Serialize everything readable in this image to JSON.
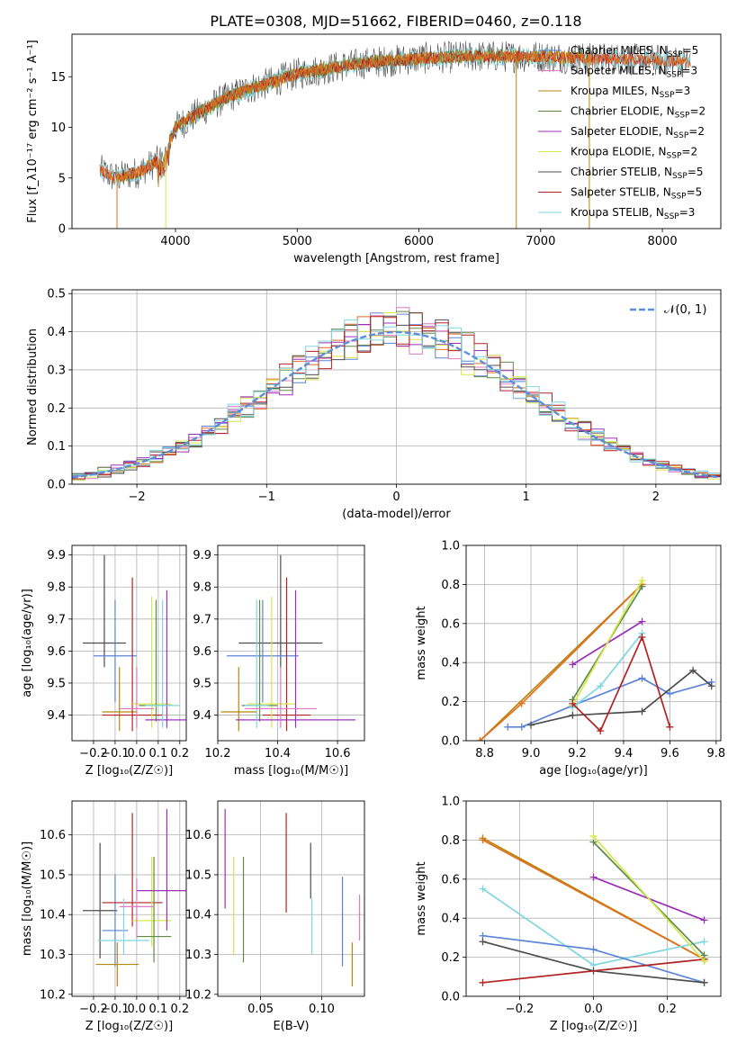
{
  "title": "PLATE=0308, MJD=51662, FIBERID=0460, z=0.118",
  "colors": {
    "Chabrier MILES": "#5b83d9",
    "Salpeter MILES": "#e377c2",
    "Kroupa MILES": "#b8860b",
    "Chabrier ELODIE": "#5e8a4a",
    "Salpeter ELODIE": "#9b30b8",
    "Kroupa ELODIE": "#d4e84a",
    "Chabrier STELIB": "#4d4d4d",
    "Salpeter STELIB": "#b22222",
    "Kroupa STELIB": "#7fd6e0",
    "orange": "#e07020",
    "gaussian": "#5b8fd9"
  },
  "chart_data": [
    {
      "type": "line",
      "id": "spectrum",
      "xlabel": "wavelength [Angstrom, rest frame]",
      "ylabel": "Flux [f_λ10⁻¹⁷ erg cm⁻² s⁻¹ A⁻¹]",
      "xlim": [
        3150,
        8480
      ],
      "ylim": [
        0,
        19.2
      ],
      "xticks": [
        4000,
        5000,
        6000,
        7000,
        8000
      ],
      "yticks": [
        0,
        5,
        10,
        15
      ],
      "legend": "right",
      "legend_entries": [
        {
          "label": "Chabrier MILES, N_SSP=5",
          "color": "#5b83d9"
        },
        {
          "label": "Salpeter MILES, N_SSP=3",
          "color": "#e377c2"
        },
        {
          "label": "Kroupa MILES, N_SSP=3",
          "color": "#b8860b"
        },
        {
          "label": "Chabrier ELODIE, N_SSP=2",
          "color": "#5e8a4a"
        },
        {
          "label": "Salpeter ELODIE, N_SSP=2",
          "color": "#9b30b8"
        },
        {
          "label": "Kroupa ELODIE, N_SSP=2",
          "color": "#d4e84a"
        },
        {
          "label": "Chabrier STELIB, N_SSP=5",
          "color": "#4d4d4d"
        },
        {
          "label": "Salpeter STELIB, N_SSP=5",
          "color": "#b22222"
        },
        {
          "label": "Kroupa STELIB, N_SSP=3",
          "color": "#7fd6e0"
        }
      ],
      "continuum_x": [
        3380,
        3500,
        3700,
        3900,
        4000,
        4200,
        4400,
        4600,
        4800,
        5000,
        5200,
        5400,
        5600,
        5800,
        6000,
        6200,
        6400,
        6600,
        6800,
        7000,
        7200,
        7400,
        7600,
        7800,
        8000,
        8200,
        8250
      ],
      "continuum_y": [
        5.8,
        5.0,
        5.6,
        7.0,
        10.0,
        11.5,
        12.8,
        13.8,
        14.5,
        15.3,
        15.7,
        16.1,
        16.4,
        16.6,
        16.8,
        16.9,
        17.0,
        17.0,
        17.0,
        17.0,
        16.9,
        16.8,
        16.8,
        16.7,
        16.6,
        16.5,
        16.5
      ]
    },
    {
      "type": "line",
      "id": "residual_histogram",
      "xlabel": "(data-model)/error",
      "ylabel": "Normed distribution",
      "xlim": [
        -2.5,
        2.5
      ],
      "ylim": [
        0,
        0.51
      ],
      "xticks": [
        -2,
        -1,
        0,
        1,
        2
      ],
      "yticks": [
        0.0,
        0.1,
        0.2,
        0.3,
        0.4,
        0.5
      ],
      "grid": true,
      "legend": "top-right",
      "legend_label": "𝒩(0, 1)",
      "bin_width": 0.1
    },
    {
      "type": "scatter",
      "id": "age_vs_Z",
      "xlabel": "Z [log₁₀(Z/Z☉)]",
      "ylabel": "age  [log₁₀(age/yr)]",
      "xlim": [
        -0.3,
        0.23
      ],
      "ylim": [
        9.32,
        9.93
      ],
      "xticks": [
        -0.2,
        -0.1,
        0.0,
        0.1,
        0.2
      ],
      "yticks": [
        9.4,
        9.5,
        9.6,
        9.7,
        9.8,
        9.9
      ],
      "grid": true,
      "errorbars": [
        {
          "series": "Chabrier STELIB",
          "x": -0.15,
          "xerr": 0.1,
          "y": 9.625,
          "yerr": 0.075,
          "y_lo": 9.55,
          "y_hi": 9.9
        },
        {
          "series": "Chabrier MILES",
          "x": -0.1,
          "xerr": 0.1,
          "y": 9.585,
          "yerr": 0.1,
          "y_lo": 9.44,
          "y_hi": 9.76
        },
        {
          "series": "Kroupa MILES",
          "x": -0.08,
          "xerr": 0.08,
          "y": 9.41,
          "yerr": 0.05,
          "y_lo": 9.35,
          "y_hi": 9.55
        },
        {
          "series": "Salpeter STELIB",
          "x": -0.02,
          "xerr": 0.14,
          "y": 9.4,
          "yerr": 0.05,
          "y_lo": 9.35,
          "y_hi": 9.83
        },
        {
          "series": "Kroupa ELODIE",
          "x": 0.07,
          "xerr": 0.09,
          "y": 9.435,
          "yerr": 0.05,
          "y_lo": 9.36,
          "y_hi": 9.77
        },
        {
          "series": "Chabrier ELODIE",
          "x": 0.09,
          "xerr": 0.08,
          "y": 9.43,
          "yerr": 0.05,
          "y_lo": 9.38,
          "y_hi": 9.76
        },
        {
          "series": "Salpeter ELODIE",
          "x": 0.14,
          "xerr": 0.1,
          "y": 9.385,
          "yerr": 0.05,
          "y_lo": 9.36,
          "y_hi": 9.79
        },
        {
          "series": "Kroupa STELIB",
          "x": 0.12,
          "xerr": 0.08,
          "y": 9.43,
          "yerr": 0.05,
          "y_lo": 9.36,
          "y_hi": 9.76
        },
        {
          "series": "Salpeter MILES",
          "x": 0.0,
          "xerr": 0.08,
          "y": 9.42,
          "yerr": 0.05,
          "y_lo": 9.36,
          "y_hi": 9.55
        }
      ]
    },
    {
      "type": "scatter",
      "id": "age_vs_mass",
      "xlabel": "mass [log₁₀(M/M☉)]",
      "ylabel": "",
      "xlim": [
        10.2,
        10.69
      ],
      "ylim": [
        9.32,
        9.93
      ],
      "xticks": [
        10.2,
        10.4,
        10.6
      ],
      "yticks": [
        9.4,
        9.5,
        9.6,
        9.7,
        9.8,
        9.9
      ],
      "grid": true,
      "errorbars": [
        {
          "series": "Chabrier STELIB",
          "x": 10.41,
          "xerr": 0.14,
          "y": 9.625,
          "y_lo": 9.55,
          "y_hi": 9.9
        },
        {
          "series": "Chabrier MILES",
          "x": 10.35,
          "xerr": 0.12,
          "y": 9.585,
          "y_lo": 9.44,
          "y_hi": 9.76
        },
        {
          "series": "Kroupa MILES",
          "x": 10.27,
          "xerr": 0.06,
          "y": 9.41,
          "y_lo": 9.35,
          "y_hi": 9.55
        },
        {
          "series": "Salpeter STELIB",
          "x": 10.43,
          "xerr": 0.08,
          "y": 9.4,
          "y_lo": 9.35,
          "y_hi": 9.83
        },
        {
          "series": "Kroupa ELODIE",
          "x": 10.38,
          "xerr": 0.08,
          "y": 9.435,
          "y_lo": 9.36,
          "y_hi": 9.77
        },
        {
          "series": "Chabrier ELODIE",
          "x": 10.34,
          "xerr": 0.06,
          "y": 9.43,
          "y_lo": 9.38,
          "y_hi": 9.76
        },
        {
          "series": "Salpeter ELODIE",
          "x": 10.46,
          "xerr": 0.2,
          "y": 9.385,
          "y_lo": 9.36,
          "y_hi": 9.79
        },
        {
          "series": "Kroupa STELIB",
          "x": 10.33,
          "xerr": 0.04,
          "y": 9.43,
          "y_lo": 9.36,
          "y_hi": 9.76
        },
        {
          "series": "Salpeter MILES",
          "x": 10.41,
          "xerr": 0.12,
          "y": 9.42,
          "y_lo": 9.36,
          "y_hi": 9.55
        }
      ]
    },
    {
      "type": "line",
      "id": "weight_vs_age",
      "xlabel": "age  [log₁₀(age/yr)]",
      "ylabel": "mass weight",
      "xlim": [
        8.72,
        9.82
      ],
      "ylim": [
        0,
        1.0
      ],
      "xticks": [
        8.8,
        9.0,
        9.2,
        9.4,
        9.6,
        9.8
      ],
      "yticks": [
        0.0,
        0.2,
        0.4,
        0.6,
        0.8,
        1.0
      ],
      "grid": true,
      "series": [
        {
          "name": "Chabrier MILES",
          "x": [
            8.9,
            8.96,
            9.18,
            9.48,
            9.6,
            9.78
          ],
          "y": [
            0.07,
            0.07,
            0.18,
            0.32,
            0.24,
            0.3
          ]
        },
        {
          "name": "Kroupa MILES",
          "x": [
            8.78,
            9.48
          ],
          "y": [
            0.0,
            0.8
          ]
        },
        {
          "name": "orange",
          "x": [
            8.78,
            8.96,
            9.48
          ],
          "y": [
            0.0,
            0.19,
            0.8
          ]
        },
        {
          "name": "Salpeter ELODIE",
          "x": [
            9.18,
            9.48
          ],
          "y": [
            0.39,
            0.61
          ]
        },
        {
          "name": "Chabrier ELODIE",
          "x": [
            9.18,
            9.48
          ],
          "y": [
            0.21,
            0.79
          ]
        },
        {
          "name": "Kroupa ELODIE",
          "x": [
            9.18,
            9.48
          ],
          "y": [
            0.18,
            0.82
          ]
        },
        {
          "name": "Kroupa STELIB",
          "x": [
            9.18,
            9.3,
            9.48
          ],
          "y": [
            0.17,
            0.28,
            0.55
          ]
        },
        {
          "name": "Chabrier STELIB",
          "x": [
            9.0,
            9.18,
            9.48,
            9.7,
            9.78
          ],
          "y": [
            0.08,
            0.13,
            0.15,
            0.36,
            0.28
          ]
        },
        {
          "name": "Salpeter STELIB",
          "x": [
            9.18,
            9.3,
            9.48,
            9.6
          ],
          "y": [
            0.19,
            0.05,
            0.53,
            0.07
          ]
        }
      ]
    },
    {
      "type": "scatter",
      "id": "mass_vs_Z",
      "xlabel": "Z [log₁₀(Z/Z☉)]",
      "ylabel": "mass [log₁₀(M/M☉)]",
      "xlim": [
        -0.3,
        0.23
      ],
      "ylim": [
        10.195,
        10.685
      ],
      "xticks": [
        -0.2,
        -0.1,
        0.0,
        0.1,
        0.2
      ],
      "yticks": [
        10.2,
        10.3,
        10.4,
        10.5,
        10.6
      ],
      "grid": true,
      "errorbars": [
        {
          "series": "Chabrier STELIB",
          "x": -0.17,
          "xerr": 0.08,
          "y": 10.41,
          "y_lo": 10.29,
          "y_hi": 10.58
        },
        {
          "series": "Chabrier MILES",
          "x": -0.1,
          "xerr": 0.06,
          "y": 10.36,
          "y_lo": 10.27,
          "y_hi": 10.5
        },
        {
          "series": "Kroupa MILES",
          "x": -0.09,
          "xerr": 0.1,
          "y": 10.275,
          "y_lo": 10.22,
          "y_hi": 10.33
        },
        {
          "series": "Salpeter STELIB",
          "x": -0.02,
          "xerr": 0.14,
          "y": 10.43,
          "y_lo": 10.37,
          "y_hi": 10.655
        },
        {
          "series": "Kroupa ELODIE",
          "x": 0.07,
          "xerr": 0.09,
          "y": 10.385,
          "y_lo": 10.32,
          "y_hi": 10.545
        },
        {
          "series": "Chabrier ELODIE",
          "x": 0.08,
          "xerr": 0.08,
          "y": 10.345,
          "y_lo": 10.28,
          "y_hi": 10.545
        },
        {
          "series": "Salpeter ELODIE",
          "x": 0.14,
          "xerr": 0.14,
          "y": 10.46,
          "y_lo": 10.36,
          "y_hi": 10.665
        },
        {
          "series": "Kroupa STELIB",
          "x": -0.06,
          "xerr": 0.12,
          "y": 10.335,
          "y_lo": 10.3,
          "y_hi": 10.44
        },
        {
          "series": "Salpeter MILES",
          "x": 0.0,
          "xerr": 0.08,
          "y": 10.42,
          "y_lo": 10.34,
          "y_hi": 10.49
        }
      ]
    },
    {
      "type": "scatter",
      "id": "mass_vs_EBV",
      "xlabel": "E(B-V)",
      "ylabel": "",
      "xlim": [
        0.015,
        0.135
      ],
      "ylim": [
        10.195,
        10.685
      ],
      "xticks": [
        0.05,
        0.1
      ],
      "yticks": [
        10.2,
        10.3,
        10.4,
        10.5,
        10.6
      ],
      "grid": true,
      "errorbars": [
        {
          "series": "Salpeter ELODIE",
          "x": 0.021,
          "y_lo": 10.415,
          "y_hi": 10.665
        },
        {
          "series": "Kroupa ELODIE",
          "x": 0.028,
          "y_lo": 10.3,
          "y_hi": 10.545
        },
        {
          "series": "Chabrier ELODIE",
          "x": 0.036,
          "y_lo": 10.28,
          "y_hi": 10.545
        },
        {
          "series": "Salpeter STELIB",
          "x": 0.071,
          "y_lo": 10.405,
          "y_hi": 10.655
        },
        {
          "series": "Chabrier STELIB",
          "x": 0.091,
          "y_lo": 10.44,
          "y_hi": 10.58
        },
        {
          "series": "Kroupa STELIB",
          "x": 0.092,
          "y_lo": 10.3,
          "y_hi": 10.44
        },
        {
          "series": "Chabrier MILES",
          "x": 0.117,
          "y_lo": 10.27,
          "y_hi": 10.495
        },
        {
          "series": "Kroupa MILES",
          "x": 0.125,
          "y_lo": 10.22,
          "y_hi": 10.33
        },
        {
          "series": "Salpeter MILES",
          "x": 0.131,
          "y_lo": 10.335,
          "y_hi": 10.45
        }
      ]
    },
    {
      "type": "line",
      "id": "weight_vs_Z",
      "xlabel": "Z [log₁₀(Z/Z☉)]",
      "ylabel": "mass weight",
      "xlim": [
        -0.345,
        0.345
      ],
      "ylim": [
        0,
        1.0
      ],
      "xticks": [
        -0.2,
        0.0,
        0.2
      ],
      "yticks": [
        0.0,
        0.2,
        0.4,
        0.6,
        0.8,
        1.0
      ],
      "grid": true,
      "series": [
        {
          "name": "Kroupa MILES",
          "x": [
            -0.3,
            0.3
          ],
          "y": [
            0.81,
            0.19
          ]
        },
        {
          "name": "orange",
          "x": [
            -0.3,
            0.3
          ],
          "y": [
            0.8,
            0.19
          ]
        },
        {
          "name": "Kroupa STELIB",
          "x": [
            -0.3,
            0.0,
            0.3
          ],
          "y": [
            0.55,
            0.16,
            0.28
          ]
        },
        {
          "name": "Chabrier MILES",
          "x": [
            -0.3,
            0.0,
            0.3
          ],
          "y": [
            0.31,
            0.24,
            0.07
          ]
        },
        {
          "name": "Chabrier STELIB",
          "x": [
            -0.3,
            0.0,
            0.3
          ],
          "y": [
            0.28,
            0.13,
            0.07
          ]
        },
        {
          "name": "Salpeter STELIB",
          "x": [
            -0.3,
            0.3
          ],
          "y": [
            0.07,
            0.19
          ]
        },
        {
          "name": "Salpeter ELODIE",
          "x": [
            0.0,
            0.3
          ],
          "y": [
            0.61,
            0.39
          ]
        },
        {
          "name": "Chabrier ELODIE",
          "x": [
            0.0,
            0.3
          ],
          "y": [
            0.79,
            0.21
          ]
        },
        {
          "name": "Kroupa ELODIE",
          "x": [
            0.0,
            0.3
          ],
          "y": [
            0.82,
            0.18
          ]
        }
      ]
    }
  ]
}
